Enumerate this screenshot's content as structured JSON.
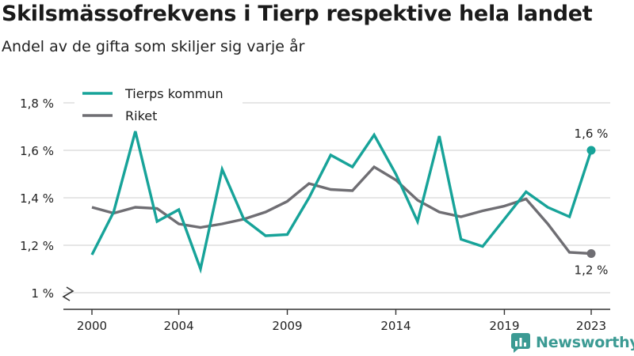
{
  "header": {
    "title": "Skilsmässofrekvens i Tierp respektive hela landet",
    "subtitle": "Andel av de gifta som skiljer sig varje år"
  },
  "brand": {
    "name": "Newsworthy",
    "icon": "newsworthy-logo-icon"
  },
  "colors": {
    "tierp": "#17a399",
    "riket": "#6f6e73",
    "grid": "#d6d6d6",
    "axis": "#333333"
  },
  "end_labels": {
    "tierp": "1,6 %",
    "riket": "1,2 %"
  },
  "chart_data": {
    "type": "line",
    "x": [
      2000,
      2001,
      2002,
      2003,
      2004,
      2005,
      2006,
      2007,
      2008,
      2009,
      2010,
      2011,
      2012,
      2013,
      2014,
      2015,
      2016,
      2017,
      2018,
      2019,
      2020,
      2021,
      2022,
      2023
    ],
    "series": [
      {
        "name": "Tierps kommun",
        "values": [
          1.16,
          1.34,
          1.68,
          1.3,
          1.35,
          1.1,
          1.52,
          1.31,
          1.24,
          1.245,
          1.4,
          1.58,
          1.53,
          1.665,
          1.5,
          1.3,
          1.66,
          1.225,
          1.195,
          1.31,
          1.425,
          1.36,
          1.32,
          1.6
        ]
      },
      {
        "name": "Riket",
        "values": [
          1.36,
          1.335,
          1.36,
          1.355,
          1.29,
          1.275,
          1.29,
          1.31,
          1.34,
          1.385,
          1.46,
          1.435,
          1.43,
          1.53,
          1.475,
          1.39,
          1.34,
          1.32,
          1.345,
          1.365,
          1.395,
          1.29,
          1.17,
          1.165
        ]
      }
    ],
    "ylim": [
      1.0,
      1.8
    ],
    "y_ticks": [
      1.2,
      1.4,
      1.6,
      1.8
    ],
    "y_tick_labels": [
      "1,2 %",
      "1,4 %",
      "1,6 %",
      "1,8 %"
    ],
    "y_base_label": "1 %",
    "y_axis_break": true,
    "x_ticks": [
      2000,
      2004,
      2009,
      2014,
      2019,
      2023
    ],
    "x_tick_labels": [
      "2000",
      "2004",
      "2009",
      "2014",
      "2019",
      "2023"
    ],
    "grid": true,
    "legend": "top-left"
  }
}
